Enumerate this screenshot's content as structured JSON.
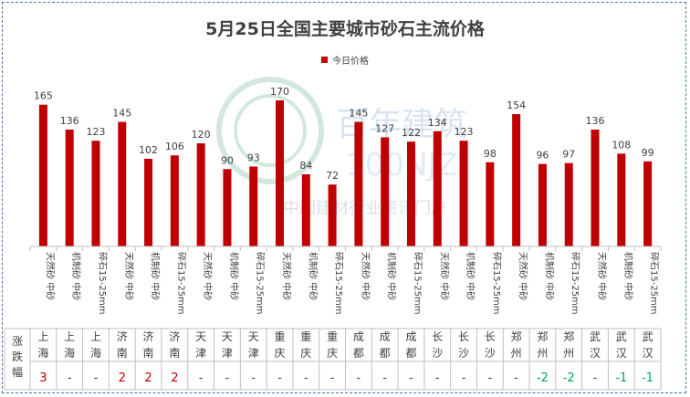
{
  "chart_data": {
    "type": "bar",
    "title": "5月25日全国主要城市砂石主流价格",
    "legend": [
      "今日价格"
    ],
    "bar_color": "#c00000",
    "categories": [
      "天然砂 中砂",
      "机制砂 中砂",
      "碎石15-25mm",
      "天然砂 中砂",
      "机制砂 中砂",
      "碎石15-25mm",
      "天然砂 中砂",
      "机制砂 中砂",
      "碎石15-25mm",
      "天然砂 中砂",
      "机制砂 中砂",
      "碎石15-25mm",
      "天然砂 中砂",
      "机制砂 中砂",
      "碎石15-25mm",
      "天然砂 中砂",
      "机制砂 中砂",
      "碎石15-25mm",
      "天然砂 中砂",
      "机制砂 中砂",
      "碎石15-25mm",
      "天然砂 中砂",
      "机制砂 中砂",
      "碎石15-25mm"
    ],
    "series": [
      {
        "name": "今日价格",
        "values": [
          165,
          136,
          123,
          145,
          102,
          106,
          120,
          90,
          93,
          170,
          84,
          72,
          145,
          127,
          122,
          134,
          123,
          98,
          154,
          96,
          97,
          136,
          108,
          99
        ]
      }
    ],
    "ylim": [
      0,
      180
    ],
    "grid": false
  },
  "table": {
    "row_label": "涨跌幅",
    "cities": [
      "上海",
      "上海",
      "上海",
      "济南",
      "济南",
      "济南",
      "天津",
      "天津",
      "天津",
      "重庆",
      "重庆",
      "重庆",
      "成都",
      "成都",
      "成都",
      "长沙",
      "长沙",
      "长沙",
      "郑州",
      "郑州",
      "郑州",
      "武汉",
      "武汉",
      "武汉"
    ],
    "changes": [
      "3",
      "-",
      "-",
      "2",
      "2",
      "2",
      "-",
      "-",
      "-",
      "-",
      "-",
      "-",
      "-",
      "-",
      "-",
      "-",
      "-",
      "-",
      "-",
      "-2",
      "-2",
      "-",
      "-1",
      "-1"
    ]
  },
  "watermark": {
    "cn": "百年建筑",
    "en": "100NJZ",
    "sub": "中国建材行业资讯门户"
  },
  "colors": {
    "up": "#c00000",
    "down": "#00a650",
    "neutral": "#404040"
  }
}
